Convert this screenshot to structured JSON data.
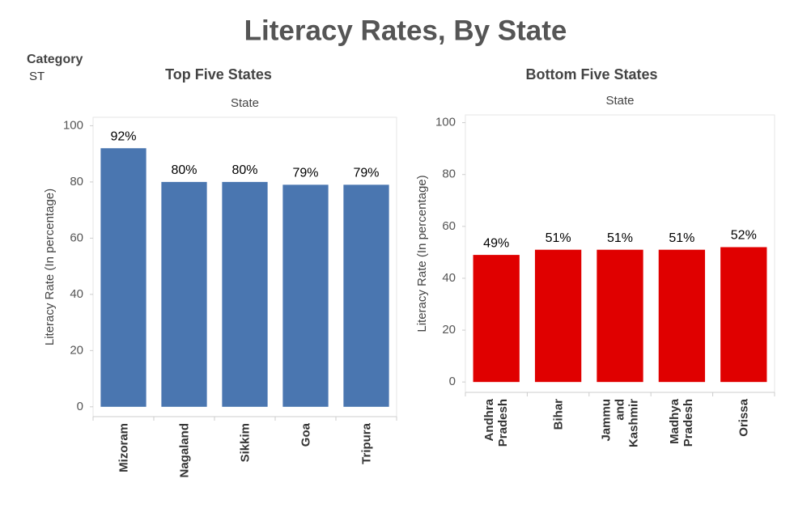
{
  "title": "Literacy Rates, By State",
  "filter": {
    "label": "Category",
    "value": "ST"
  },
  "chart_data": [
    {
      "type": "bar",
      "title": "Top Five States",
      "x_label": "State",
      "y_label": "Literacy Rate (In percentage)",
      "categories": [
        "Mizoram",
        "Nagaland",
        "Sikkim",
        "Goa",
        "Tripura"
      ],
      "values": [
        92,
        80,
        80,
        79,
        79
      ],
      "value_labels": [
        "92%",
        "80%",
        "80%",
        "79%",
        "79%"
      ],
      "color": "#4a76b0",
      "ylim": [
        -3.5,
        103
      ],
      "yticks": [
        0,
        20,
        40,
        60,
        80,
        100
      ]
    },
    {
      "type": "bar",
      "title": "Bottom Five States",
      "x_label": "State",
      "y_label": "Literacy Rate (In percentage)",
      "categories": [
        "Andhra Pradesh",
        "Bihar",
        "Jammu and Kashmir",
        "Madhya Pradesh",
        "Orissa"
      ],
      "values": [
        49,
        51,
        51,
        51,
        52
      ],
      "value_labels": [
        "49%",
        "51%",
        "51%",
        "51%",
        "52%"
      ],
      "color": "#e00000",
      "ylim": [
        -4,
        103
      ],
      "yticks": [
        0,
        20,
        40,
        60,
        80,
        100
      ]
    }
  ]
}
